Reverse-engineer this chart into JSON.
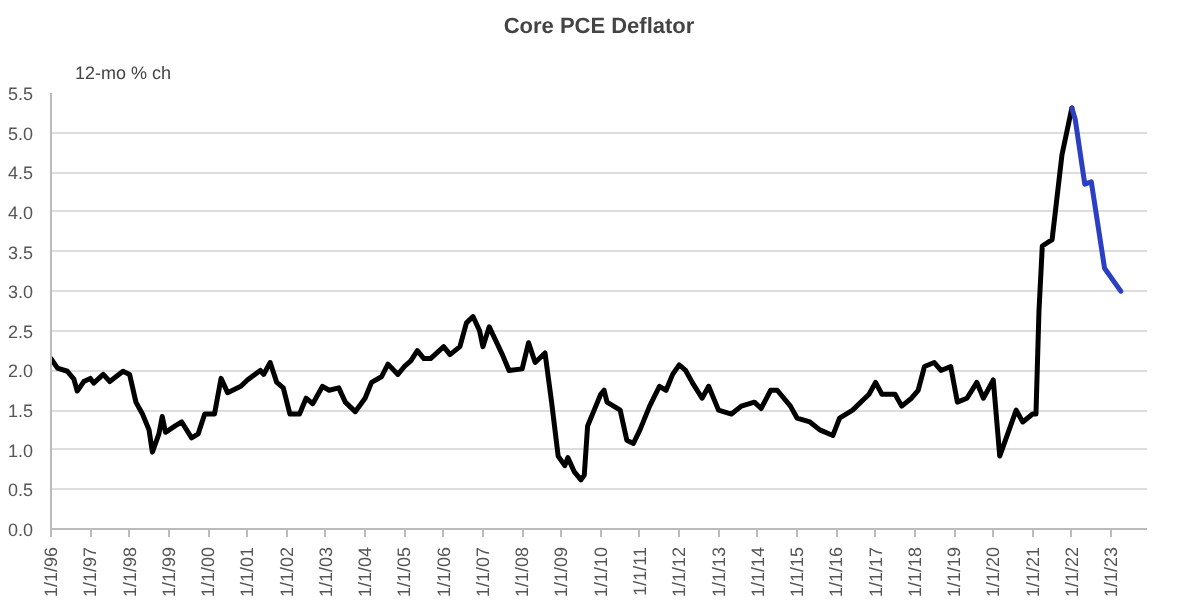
{
  "chart_data": {
    "type": "line",
    "title": "Core PCE Deflator",
    "ylabel": "12-mo % ch",
    "xlim": [
      "1996-01-01",
      "2023-12-01"
    ],
    "ylim": [
      0.0,
      5.5
    ],
    "yticks": [
      {
        "value": 0,
        "label": "0.0"
      },
      {
        "value": 0.5,
        "label": "0.5"
      },
      {
        "value": 1,
        "label": "1.0"
      },
      {
        "value": 1.5,
        "label": "1.5"
      },
      {
        "value": 2,
        "label": "2.0"
      },
      {
        "value": 2.5,
        "label": "2.5"
      },
      {
        "value": 3,
        "label": "3.0"
      },
      {
        "value": 3.5,
        "label": "3.5"
      },
      {
        "value": 4,
        "label": "4.0"
      },
      {
        "value": 4.5,
        "label": "4.5"
      },
      {
        "value": 5,
        "label": "5.0"
      },
      {
        "value": 5.5,
        "label": "5.5"
      }
    ],
    "xticks": [
      {
        "value": "1996-01-01",
        "label": "1/1/96"
      },
      {
        "value": "1997-01-01",
        "label": "1/1/97"
      },
      {
        "value": "1998-01-01",
        "label": "1/1/98"
      },
      {
        "value": "1999-01-01",
        "label": "1/1/99"
      },
      {
        "value": "2000-01-01",
        "label": "1/1/00"
      },
      {
        "value": "2001-01-01",
        "label": "1/1/01"
      },
      {
        "value": "2002-01-01",
        "label": "1/1/02"
      },
      {
        "value": "2003-01-01",
        "label": "1/1/03"
      },
      {
        "value": "2004-01-01",
        "label": "1/1/04"
      },
      {
        "value": "2005-01-01",
        "label": "1/1/05"
      },
      {
        "value": "2006-01-01",
        "label": "1/1/06"
      },
      {
        "value": "2007-01-01",
        "label": "1/1/07"
      },
      {
        "value": "2008-01-01",
        "label": "1/1/08"
      },
      {
        "value": "2009-01-01",
        "label": "1/1/09"
      },
      {
        "value": "2010-01-01",
        "label": "1/1/10"
      },
      {
        "value": "2011-01-01",
        "label": "1/1/11"
      },
      {
        "value": "2012-01-01",
        "label": "1/1/12"
      },
      {
        "value": "2013-01-01",
        "label": "1/1/13"
      },
      {
        "value": "2014-01-01",
        "label": "1/1/14"
      },
      {
        "value": "2015-01-01",
        "label": "1/1/15"
      },
      {
        "value": "2016-01-01",
        "label": "1/1/16"
      },
      {
        "value": "2017-01-01",
        "label": "1/1/17"
      },
      {
        "value": "2018-01-01",
        "label": "1/1/18"
      },
      {
        "value": "2019-01-01",
        "label": "1/1/19"
      },
      {
        "value": "2020-01-01",
        "label": "1/1/20"
      },
      {
        "value": "2021-01-01",
        "label": "1/1/21"
      },
      {
        "value": "2022-01-01",
        "label": "1/1/22"
      },
      {
        "value": "2023-01-01",
        "label": "1/1/23"
      }
    ],
    "grid": "y",
    "marker": "none",
    "line_style": "solid",
    "series": [
      {
        "color": "#000000",
        "x": [
          "1996-01",
          "1996-03",
          "1996-06",
          "1996-08",
          "1996-09",
          "1996-11",
          "1997-01",
          "1997-02",
          "1997-05",
          "1997-07",
          "1997-11",
          "1998-01",
          "1998-03",
          "1998-05",
          "1998-07",
          "1998-08",
          "1998-10",
          "1998-11",
          "1998-12",
          "1999-03",
          "1999-05",
          "1999-08",
          "1999-10",
          "1999-12",
          "2000-03",
          "2000-05",
          "2000-07",
          "2000-11",
          "2001-01",
          "2001-05",
          "2001-06",
          "2001-08",
          "2001-10",
          "2001-12",
          "2002-02",
          "2002-05",
          "2002-07",
          "2002-09",
          "2002-12",
          "2003-02",
          "2003-05",
          "2003-07",
          "2003-10",
          "2004-01",
          "2004-03",
          "2004-06",
          "2004-08",
          "2004-11",
          "2005-01",
          "2005-03",
          "2005-05",
          "2005-07",
          "2005-09",
          "2006-01",
          "2006-03",
          "2006-06",
          "2006-08",
          "2006-10",
          "2006-12",
          "2007-01",
          "2007-03",
          "2007-07",
          "2007-09",
          "2008-01",
          "2008-03",
          "2008-05",
          "2008-08",
          "2008-10",
          "2008-12",
          "2009-02",
          "2009-03",
          "2009-05",
          "2009-07",
          "2009-08",
          "2009-09",
          "2009-11",
          "2010-01",
          "2010-02",
          "2010-03",
          "2010-07",
          "2010-09",
          "2010-11",
          "2011-01",
          "2011-04",
          "2011-07",
          "2011-09",
          "2011-11",
          "2012-01",
          "2012-03",
          "2012-05",
          "2012-08",
          "2012-10",
          "2013-01",
          "2013-05",
          "2013-08",
          "2013-12",
          "2014-02",
          "2014-05",
          "2014-07",
          "2014-11",
          "2015-01",
          "2015-05",
          "2015-08",
          "2015-12",
          "2016-02",
          "2016-06",
          "2016-11",
          "2017-01",
          "2017-03",
          "2017-07",
          "2017-09",
          "2017-12",
          "2018-02",
          "2018-04",
          "2018-07",
          "2018-09",
          "2018-12",
          "2019-02",
          "2019-05",
          "2019-08",
          "2019-10",
          "2020-01",
          "2020-03",
          "2020-08",
          "2020-10",
          "2021-01",
          "2021-02",
          "2021-03",
          "2021-04",
          "2021-07",
          "2021-10",
          "2022-01"
        ],
        "values": [
          2.15,
          2.03,
          1.99,
          1.89,
          1.74,
          1.86,
          1.9,
          1.84,
          1.95,
          1.86,
          1.99,
          1.95,
          1.6,
          1.45,
          1.25,
          0.97,
          1.2,
          1.42,
          1.22,
          1.3,
          1.35,
          1.15,
          1.2,
          1.45,
          1.45,
          1.9,
          1.72,
          1.8,
          1.88,
          2.0,
          1.95,
          2.1,
          1.85,
          1.78,
          1.45,
          1.45,
          1.65,
          1.58,
          1.8,
          1.75,
          1.78,
          1.6,
          1.48,
          1.65,
          1.85,
          1.92,
          2.08,
          1.95,
          2.05,
          2.12,
          2.25,
          2.15,
          2.15,
          2.3,
          2.2,
          2.3,
          2.6,
          2.68,
          2.5,
          2.3,
          2.55,
          2.2,
          2.0,
          2.02,
          2.35,
          2.1,
          2.22,
          1.6,
          0.92,
          0.8,
          0.9,
          0.72,
          0.62,
          0.68,
          1.3,
          1.5,
          1.7,
          1.75,
          1.6,
          1.5,
          1.12,
          1.08,
          1.25,
          1.55,
          1.8,
          1.75,
          1.95,
          2.07,
          2.0,
          1.85,
          1.65,
          1.8,
          1.5,
          1.45,
          1.55,
          1.6,
          1.52,
          1.75,
          1.75,
          1.55,
          1.4,
          1.35,
          1.25,
          1.18,
          1.4,
          1.5,
          1.7,
          1.85,
          1.7,
          1.7,
          1.55,
          1.65,
          1.75,
          2.05,
          2.1,
          2.0,
          2.05,
          1.6,
          1.65,
          1.85,
          1.65,
          1.88,
          0.92,
          1.5,
          1.35,
          1.45,
          1.45,
          2.75,
          3.57,
          3.65,
          4.72,
          5.31
        ]
      },
      {
        "color": "#2b3fc4",
        "x": [
          "2022-01",
          "2022-02",
          "2022-05",
          "2022-07",
          "2022-11",
          "2023-04"
        ],
        "values": [
          5.31,
          5.17,
          4.35,
          4.38,
          3.29,
          3.0
        ]
      }
    ]
  }
}
